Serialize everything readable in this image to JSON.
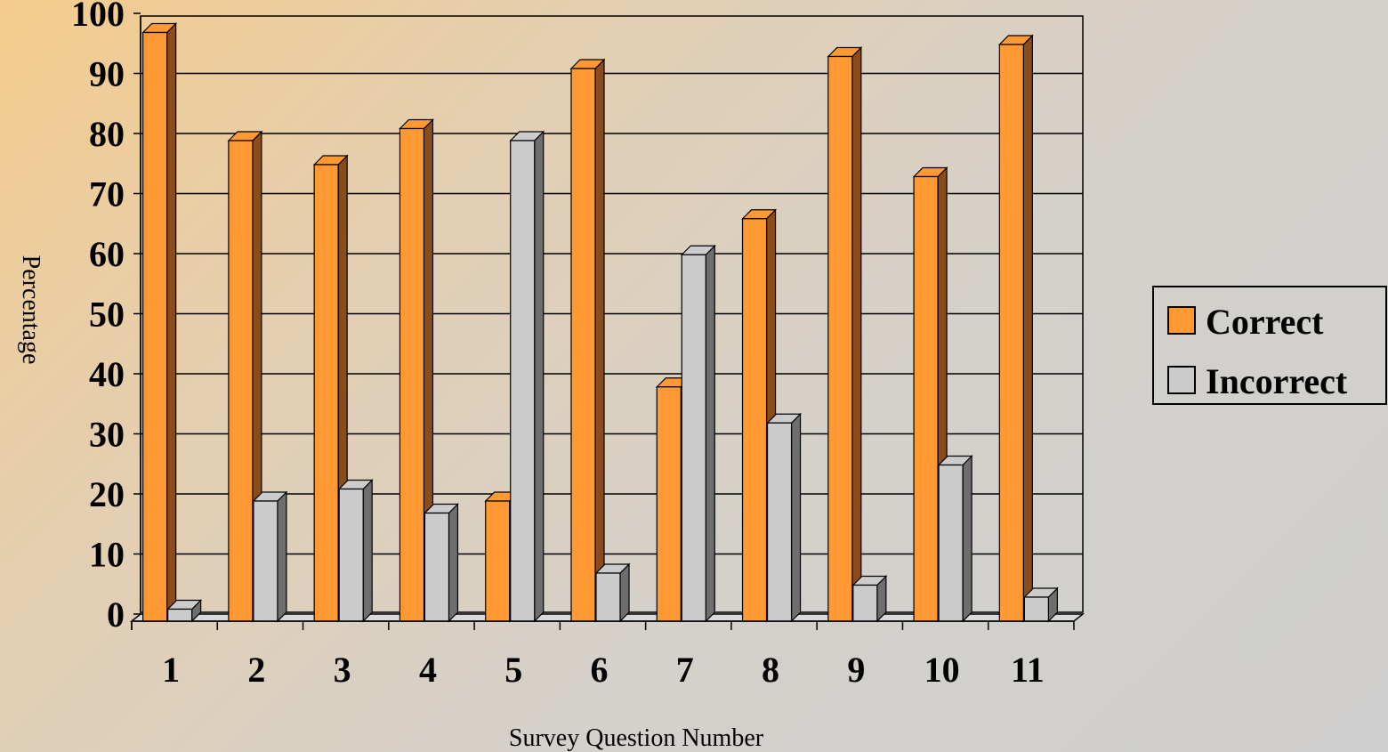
{
  "chart_data": {
    "type": "bar",
    "title": "",
    "xlabel": "Survey Question Number",
    "ylabel": "Percentage",
    "categories": [
      "1",
      "2",
      "3",
      "4",
      "5",
      "6",
      "7",
      "8",
      "9",
      "10",
      "11"
    ],
    "series": [
      {
        "name": "Correct",
        "color": "#ff9933",
        "side_color": "#8a4d1a",
        "values": [
          98,
          80,
          76,
          82,
          20,
          92,
          39,
          67,
          94,
          74,
          96
        ]
      },
      {
        "name": "Incorrect",
        "color": "#cccccc",
        "side_color": "#6e6e6e",
        "values": [
          2,
          20,
          22,
          18,
          80,
          8,
          61,
          33,
          6,
          26,
          4
        ]
      }
    ],
    "ylim": [
      0,
      100
    ],
    "yticks": [
      "0",
      "10",
      "20",
      "30",
      "40",
      "50",
      "60",
      "70",
      "80",
      "90",
      "100"
    ],
    "grid": true,
    "legend_position": "right"
  }
}
